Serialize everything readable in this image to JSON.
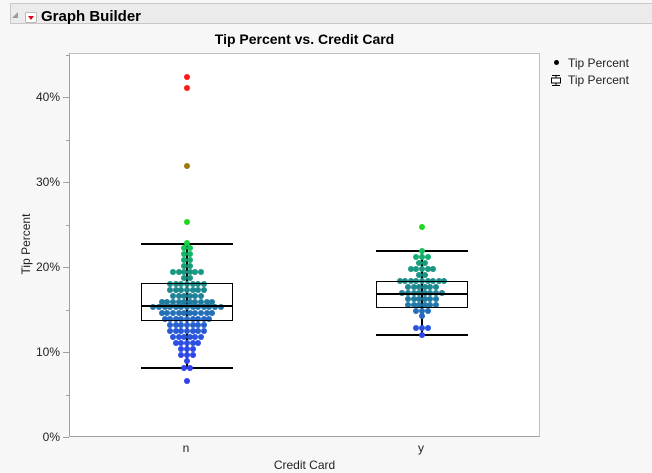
{
  "header": {
    "title": "Graph Builder"
  },
  "chart_data": {
    "type": "box+dotplot",
    "title": "Tip Percent vs. Credit Card",
    "xlabel": "Credit Card",
    "ylabel": "Tip Percent",
    "categories": [
      "n",
      "y"
    ],
    "yticks": [
      "0%",
      "10%",
      "20%",
      "30%",
      "40%"
    ],
    "ylim": [
      0,
      45
    ],
    "grid": false,
    "legend_position": "right",
    "legend": [
      {
        "label": "Tip Percent",
        "symbol": "dot"
      },
      {
        "label": "Tip Percent",
        "symbol": "box"
      }
    ],
    "box_stats": [
      {
        "category": "n",
        "lower_whisker": 8.2,
        "q1": 13.8,
        "median": 15.5,
        "q3": 18.1,
        "upper_whisker": 22.8,
        "outliers": [
          25.4,
          32.0,
          41.2,
          42.5
        ],
        "min": 6.7
      },
      {
        "category": "y",
        "lower_whisker": 12.1,
        "q1": 15.4,
        "median": 16.9,
        "q3": 18.4,
        "upper_whisker": 22.0,
        "outliers": [
          24.8
        ]
      }
    ],
    "dot_rows": {
      "n": [
        {
          "y": 42.5,
          "count": 1,
          "color": "#ff1a1a"
        },
        {
          "y": 41.2,
          "count": 1,
          "color": "#ff1a1a"
        },
        {
          "y": 32.0,
          "count": 1,
          "color": "#9b7a0c"
        },
        {
          "y": 25.4,
          "count": 1,
          "color": "#1fd81f"
        },
        {
          "y": 23.0,
          "count": 1,
          "color": "#19d240"
        },
        {
          "y": 22.3,
          "count": 2,
          "color": "#14c65a"
        },
        {
          "y": 21.6,
          "count": 2,
          "color": "#15b56b"
        },
        {
          "y": 20.9,
          "count": 2,
          "color": "#17a873"
        },
        {
          "y": 20.2,
          "count": 2,
          "color": "#189e7a"
        },
        {
          "y": 19.5,
          "count": 6,
          "color": "#1a9780"
        },
        {
          "y": 18.8,
          "count": 2,
          "color": "#1b9284"
        },
        {
          "y": 18.1,
          "count": 7,
          "color": "#1c8d8a"
        },
        {
          "y": 17.4,
          "count": 7,
          "color": "#1d888f"
        },
        {
          "y": 16.7,
          "count": 6,
          "color": "#1f8296"
        },
        {
          "y": 16.0,
          "count": 10,
          "color": "#217c9f"
        },
        {
          "y": 15.4,
          "count": 13,
          "color": "#2277aa"
        },
        {
          "y": 14.7,
          "count": 10,
          "color": "#2470b8"
        },
        {
          "y": 14.0,
          "count": 9,
          "color": "#2568c4"
        },
        {
          "y": 13.3,
          "count": 7,
          "color": "#2761ce"
        },
        {
          "y": 12.6,
          "count": 7,
          "color": "#285ad6"
        },
        {
          "y": 11.9,
          "count": 6,
          "color": "#2a54dd"
        },
        {
          "y": 11.2,
          "count": 5,
          "color": "#2b4fe2"
        },
        {
          "y": 10.5,
          "count": 3,
          "color": "#2c4be6"
        },
        {
          "y": 9.8,
          "count": 3,
          "color": "#2d48e9"
        },
        {
          "y": 9.1,
          "count": 1,
          "color": "#2e45eb"
        },
        {
          "y": 8.2,
          "count": 2,
          "color": "#2f42ed"
        },
        {
          "y": 6.7,
          "count": 1,
          "color": "#3040ef"
        }
      ],
      "y": [
        {
          "y": 24.8,
          "count": 1,
          "color": "#1fd81f"
        },
        {
          "y": 22.0,
          "count": 1,
          "color": "#15c05f"
        },
        {
          "y": 21.3,
          "count": 3,
          "color": "#16ae70"
        },
        {
          "y": 20.6,
          "count": 2,
          "color": "#189e7a"
        },
        {
          "y": 19.9,
          "count": 5,
          "color": "#1a9780"
        },
        {
          "y": 19.2,
          "count": 2,
          "color": "#1b9284"
        },
        {
          "y": 18.5,
          "count": 9,
          "color": "#1c8d8a"
        },
        {
          "y": 17.8,
          "count": 6,
          "color": "#1d888f"
        },
        {
          "y": 17.1,
          "count": 8,
          "color": "#1f8296"
        },
        {
          "y": 16.4,
          "count": 6,
          "color": "#217c9f"
        },
        {
          "y": 15.7,
          "count": 6,
          "color": "#2277aa"
        },
        {
          "y": 15.0,
          "count": 3,
          "color": "#2470b8"
        },
        {
          "y": 14.3,
          "count": 1,
          "color": "#2568c4"
        },
        {
          "y": 13.0,
          "count": 3,
          "color": "#2a54dd"
        },
        {
          "y": 12.1,
          "count": 1,
          "color": "#2e45eb"
        }
      ]
    }
  }
}
